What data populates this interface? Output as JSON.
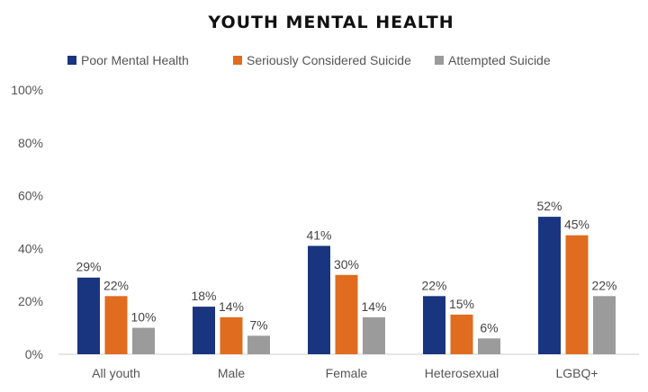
{
  "chart_data": {
    "type": "bar",
    "title": "YOUTH MENTAL HEALTH",
    "xlabel": "",
    "ylabel": "",
    "ylim": [
      0,
      100
    ],
    "yticks": [
      "0%",
      "20%",
      "40%",
      "60%",
      "80%",
      "100%"
    ],
    "ytick_values": [
      0,
      20,
      40,
      60,
      80,
      100
    ],
    "grid": false,
    "legend_position": "top",
    "categories": [
      "All youth",
      "Male",
      "Female",
      "Heterosexual",
      "LGBQ+"
    ],
    "series": [
      {
        "name": "Poor Mental Health",
        "color": "#1a3580",
        "values": [
          29,
          18,
          41,
          22,
          52
        ],
        "labels": [
          "29%",
          "18%",
          "41%",
          "22%",
          "52%"
        ]
      },
      {
        "name": "Seriously Considered Suicide",
        "color": "#e06c1f",
        "values": [
          22,
          14,
          30,
          15,
          45
        ],
        "labels": [
          "22%",
          "14%",
          "30%",
          "15%",
          "45%"
        ]
      },
      {
        "name": "Attempted Suicide",
        "color": "#9b9b9b",
        "values": [
          10,
          7,
          14,
          6,
          22
        ],
        "labels": [
          "10%",
          "7%",
          "14%",
          "6%",
          "22%"
        ]
      }
    ]
  }
}
